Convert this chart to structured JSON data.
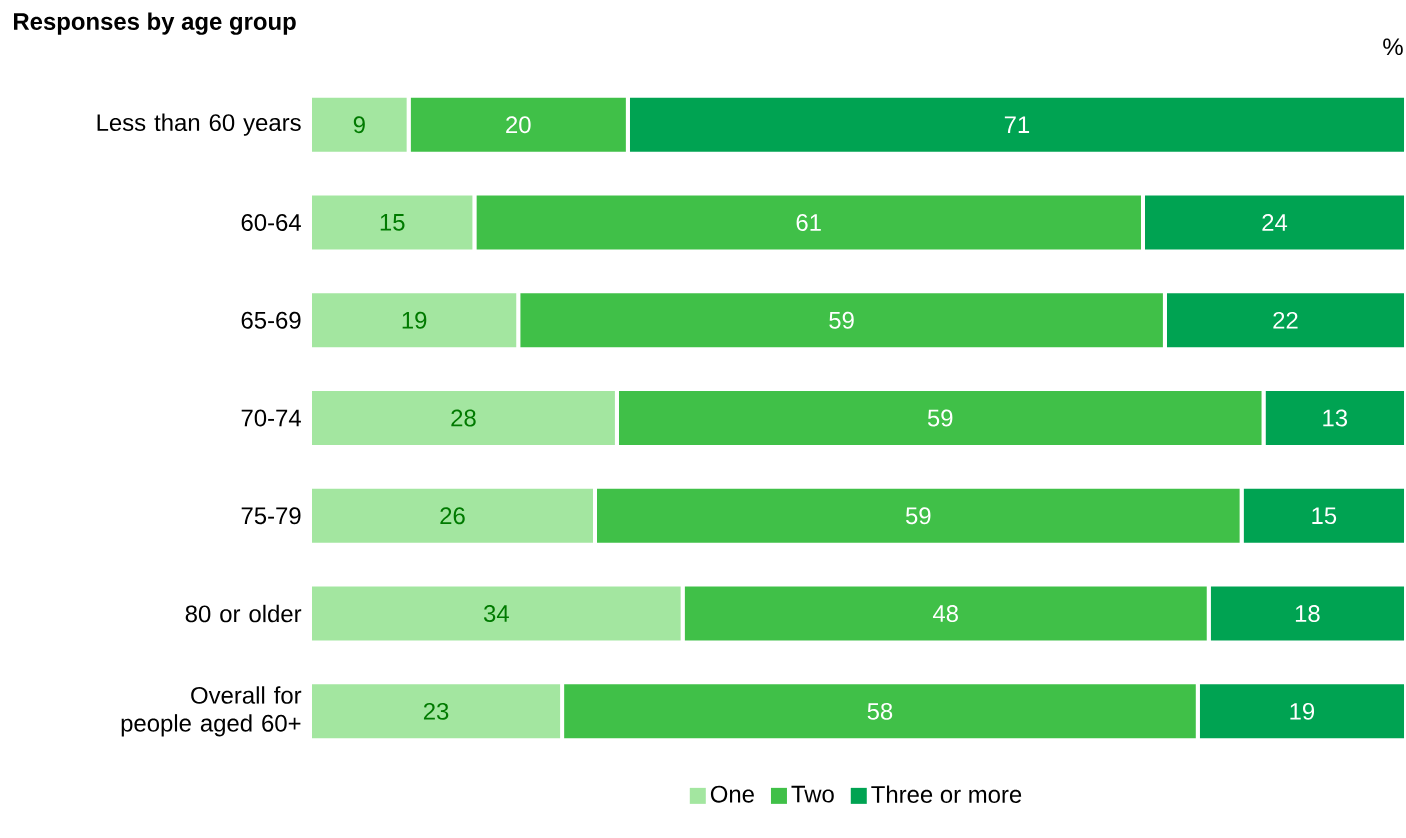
{
  "chart_data": {
    "type": "bar",
    "orientation": "horizontal",
    "stacked": true,
    "title": "**Responses by age group**",
    "annotations": [
      "%"
    ],
    "categories": [
      "Less than 60 years",
      "60-64",
      "65-69",
      "70-74",
      "75-79",
      "80 or older",
      "Overall for people aged 60+"
    ],
    "series": [
      {
        "name": "One",
        "color": "#a3e6a0",
        "values": [
          9,
          15,
          19,
          28,
          26,
          34,
          23
        ]
      },
      {
        "name": "Two",
        "color": "#40c048",
        "values": [
          20,
          61,
          59,
          59,
          59,
          48,
          58
        ]
      },
      {
        "name": "Three or more",
        "color": "#00a352",
        "values": [
          71,
          24,
          22,
          13,
          15,
          18,
          19
        ]
      }
    ],
    "data_labels": true,
    "legend": "bottom",
    "tick_labels": "y"
  }
}
